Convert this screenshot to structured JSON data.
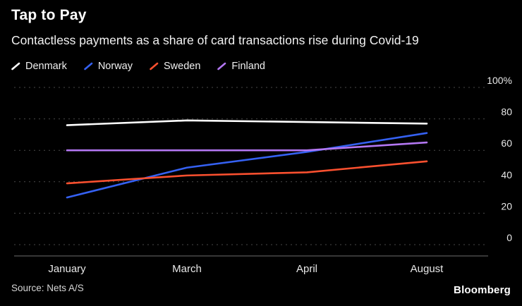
{
  "header": {
    "title": "Tap to Pay",
    "subtitle": "Contactless payments as a share of card transactions rise during Covid-19"
  },
  "footer": {
    "source": "Source: Nets A/S",
    "brand": "Bloomberg"
  },
  "style": {
    "background": "#000000",
    "gridline_color": "#4a4a4a",
    "axis_line_color": "#6e6e6e",
    "tick_label_color": "#e8e8e8"
  },
  "chart_data": {
    "type": "line",
    "categories": [
      "January",
      "March",
      "April",
      "August"
    ],
    "series": [
      {
        "name": "Denmark",
        "color": "#ffffff",
        "values": [
          76,
          79,
          78,
          77
        ]
      },
      {
        "name": "Norway",
        "color": "#3561f2",
        "values": [
          30,
          49,
          59,
          71
        ]
      },
      {
        "name": "Sweden",
        "color": "#fb502f",
        "values": [
          39,
          44,
          46,
          53
        ]
      },
      {
        "name": "Finland",
        "color": "#b377f2",
        "values": [
          60,
          60,
          60,
          65
        ]
      }
    ],
    "title": "Tap to Pay",
    "subtitle": "Contactless payments as a share of card transactions rise during Covid-19",
    "xlabel": "",
    "ylabel": "",
    "ylim": [
      0,
      100
    ],
    "yticks": [
      0,
      20,
      40,
      60,
      80,
      100
    ],
    "ytick_labels": [
      "0",
      "20",
      "40",
      "60",
      "80",
      "100%"
    ],
    "grid": "horizontal-dotted",
    "legend_position": "top-left"
  }
}
